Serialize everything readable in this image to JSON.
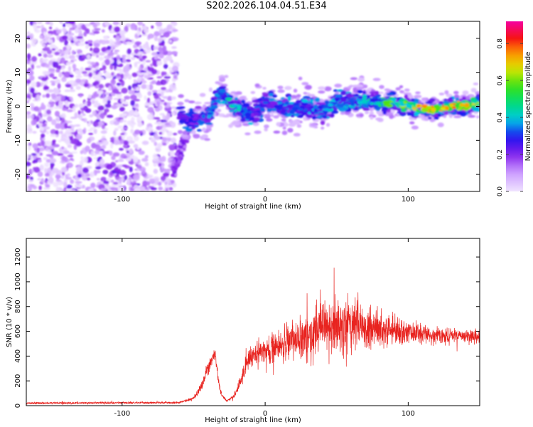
{
  "title": "S202.2026.104.04.51.E34",
  "chart_data": [
    {
      "type": "heatmap",
      "xlabel": "Height of straight line (km)",
      "ylabel": "Frequency (Hz)",
      "xlim": [
        -167,
        150
      ],
      "ylim": [
        -25,
        25
      ],
      "x_ticks": [
        -100,
        0,
        100
      ],
      "y_ticks": [
        -20,
        -10,
        0,
        10,
        20
      ],
      "colorbar": {
        "label": "Normalized spectral amplitude",
        "range": [
          0,
          0.92
        ],
        "ticks": [
          0.0,
          0.2,
          0.4,
          0.6,
          0.8
        ]
      },
      "noise_region_x": [
        -167,
        -62
      ],
      "ridge": {
        "x": [
          -60,
          -50,
          -40,
          -35,
          -30,
          -25,
          -20,
          -10,
          0,
          10,
          20,
          30,
          40,
          50,
          60,
          70,
          80,
          90,
          100,
          110,
          120,
          130,
          140,
          150
        ],
        "freq": [
          -3,
          -4,
          -3,
          1,
          4,
          1,
          0,
          -3,
          1,
          0,
          -1,
          0,
          -2,
          2,
          1,
          2,
          1,
          1,
          0,
          -1,
          -1,
          0,
          0,
          1
        ],
        "amplitude": [
          0.3,
          0.35,
          0.4,
          0.45,
          0.4,
          0.5,
          0.5,
          0.35,
          0.4,
          0.4,
          0.4,
          0.4,
          0.45,
          0.45,
          0.45,
          0.5,
          0.6,
          0.7,
          0.75,
          0.85,
          0.9,
          0.85,
          0.85,
          0.75
        ]
      }
    },
    {
      "type": "line",
      "xlabel": "Height of straight line (km)",
      "ylabel": "SNR (10 * v/v)",
      "xlim": [
        -167,
        150
      ],
      "ylim": [
        0,
        1350
      ],
      "x_ticks": [
        -100,
        0,
        100
      ],
      "y_ticks": [
        0,
        200,
        400,
        600,
        800,
        1000,
        1200
      ],
      "series": [
        {
          "name": "SNR",
          "color": "#e8231f",
          "envelope_x": [
            -167,
            -60,
            -50,
            -45,
            -40,
            -35,
            -32,
            -30,
            -27,
            -22,
            -17,
            -12,
            -5,
            0,
            10,
            20,
            30,
            40,
            50,
            60,
            70,
            80,
            90,
            100,
            110,
            120,
            130,
            140,
            150
          ],
          "envelope_mean": [
            20,
            25,
            60,
            150,
            300,
            420,
            160,
            80,
            40,
            70,
            200,
            380,
            430,
            450,
            480,
            530,
            570,
            610,
            640,
            650,
            630,
            620,
            600,
            590,
            580,
            570,
            560,
            560,
            550
          ],
          "envelope_spread": [
            12,
            12,
            20,
            60,
            80,
            70,
            40,
            25,
            15,
            20,
            80,
            120,
            140,
            150,
            180,
            230,
            280,
            320,
            340,
            330,
            300,
            250,
            200,
            150,
            110,
            90,
            80,
            80,
            80
          ]
        }
      ]
    }
  ]
}
